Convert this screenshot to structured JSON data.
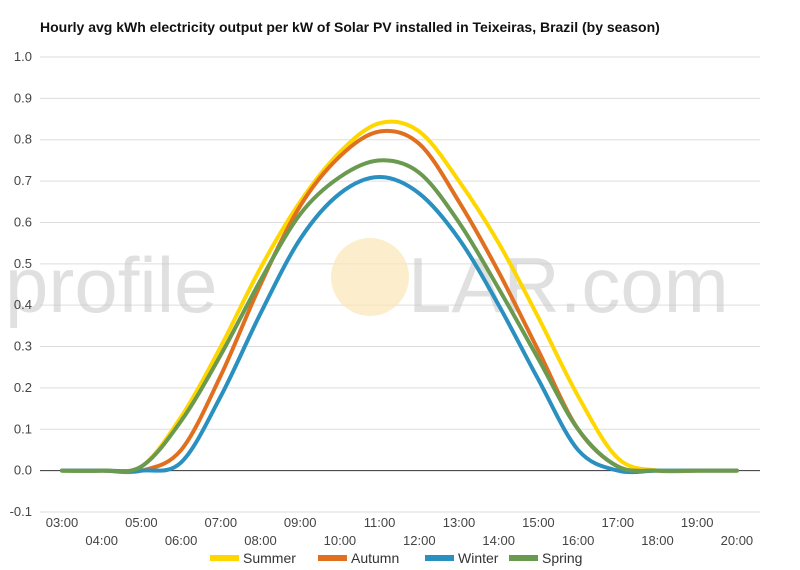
{
  "chart_data": {
    "type": "line",
    "title": "Hourly avg kWh electricity output per kW of Solar PV installed in Teixeiras, Brazil (by season)",
    "xlabel": "",
    "ylabel": "",
    "ylim": [
      -0.1,
      1.0
    ],
    "yticks": [
      "-0.1",
      "0.0",
      "0.1",
      "0.2",
      "0.3",
      "0.4",
      "0.5",
      "0.6",
      "0.7",
      "0.8",
      "0.9",
      "1.0"
    ],
    "x": [
      "03:00",
      "04:00",
      "05:00",
      "06:00",
      "07:00",
      "08:00",
      "09:00",
      "10:00",
      "11:00",
      "12:00",
      "13:00",
      "14:00",
      "15:00",
      "16:00",
      "17:00",
      "18:00",
      "19:00",
      "20:00"
    ],
    "grid": true,
    "legend_position": "bottom",
    "watermark": {
      "left": "profile",
      "right": "LAR.com"
    },
    "series": [
      {
        "name": "Summer",
        "color": "#FFD700",
        "values": [
          0,
          0,
          0.01,
          0.13,
          0.3,
          0.49,
          0.65,
          0.77,
          0.84,
          0.82,
          0.7,
          0.55,
          0.37,
          0.18,
          0.03,
          0,
          0,
          0
        ]
      },
      {
        "name": "Autumn",
        "color": "#E07020",
        "values": [
          0,
          0,
          0,
          0.05,
          0.23,
          0.45,
          0.64,
          0.76,
          0.82,
          0.79,
          0.65,
          0.48,
          0.29,
          0.1,
          0.01,
          0,
          0,
          0
        ]
      },
      {
        "name": "Winter",
        "color": "#2A90C0",
        "values": [
          0,
          0,
          0,
          0.02,
          0.18,
          0.38,
          0.56,
          0.67,
          0.71,
          0.67,
          0.56,
          0.4,
          0.22,
          0.05,
          0,
          0,
          0,
          0
        ]
      },
      {
        "name": "Spring",
        "color": "#6A9A50",
        "values": [
          0,
          0,
          0.01,
          0.12,
          0.28,
          0.46,
          0.62,
          0.71,
          0.75,
          0.72,
          0.6,
          0.44,
          0.27,
          0.1,
          0.01,
          0,
          0,
          0
        ]
      }
    ]
  }
}
